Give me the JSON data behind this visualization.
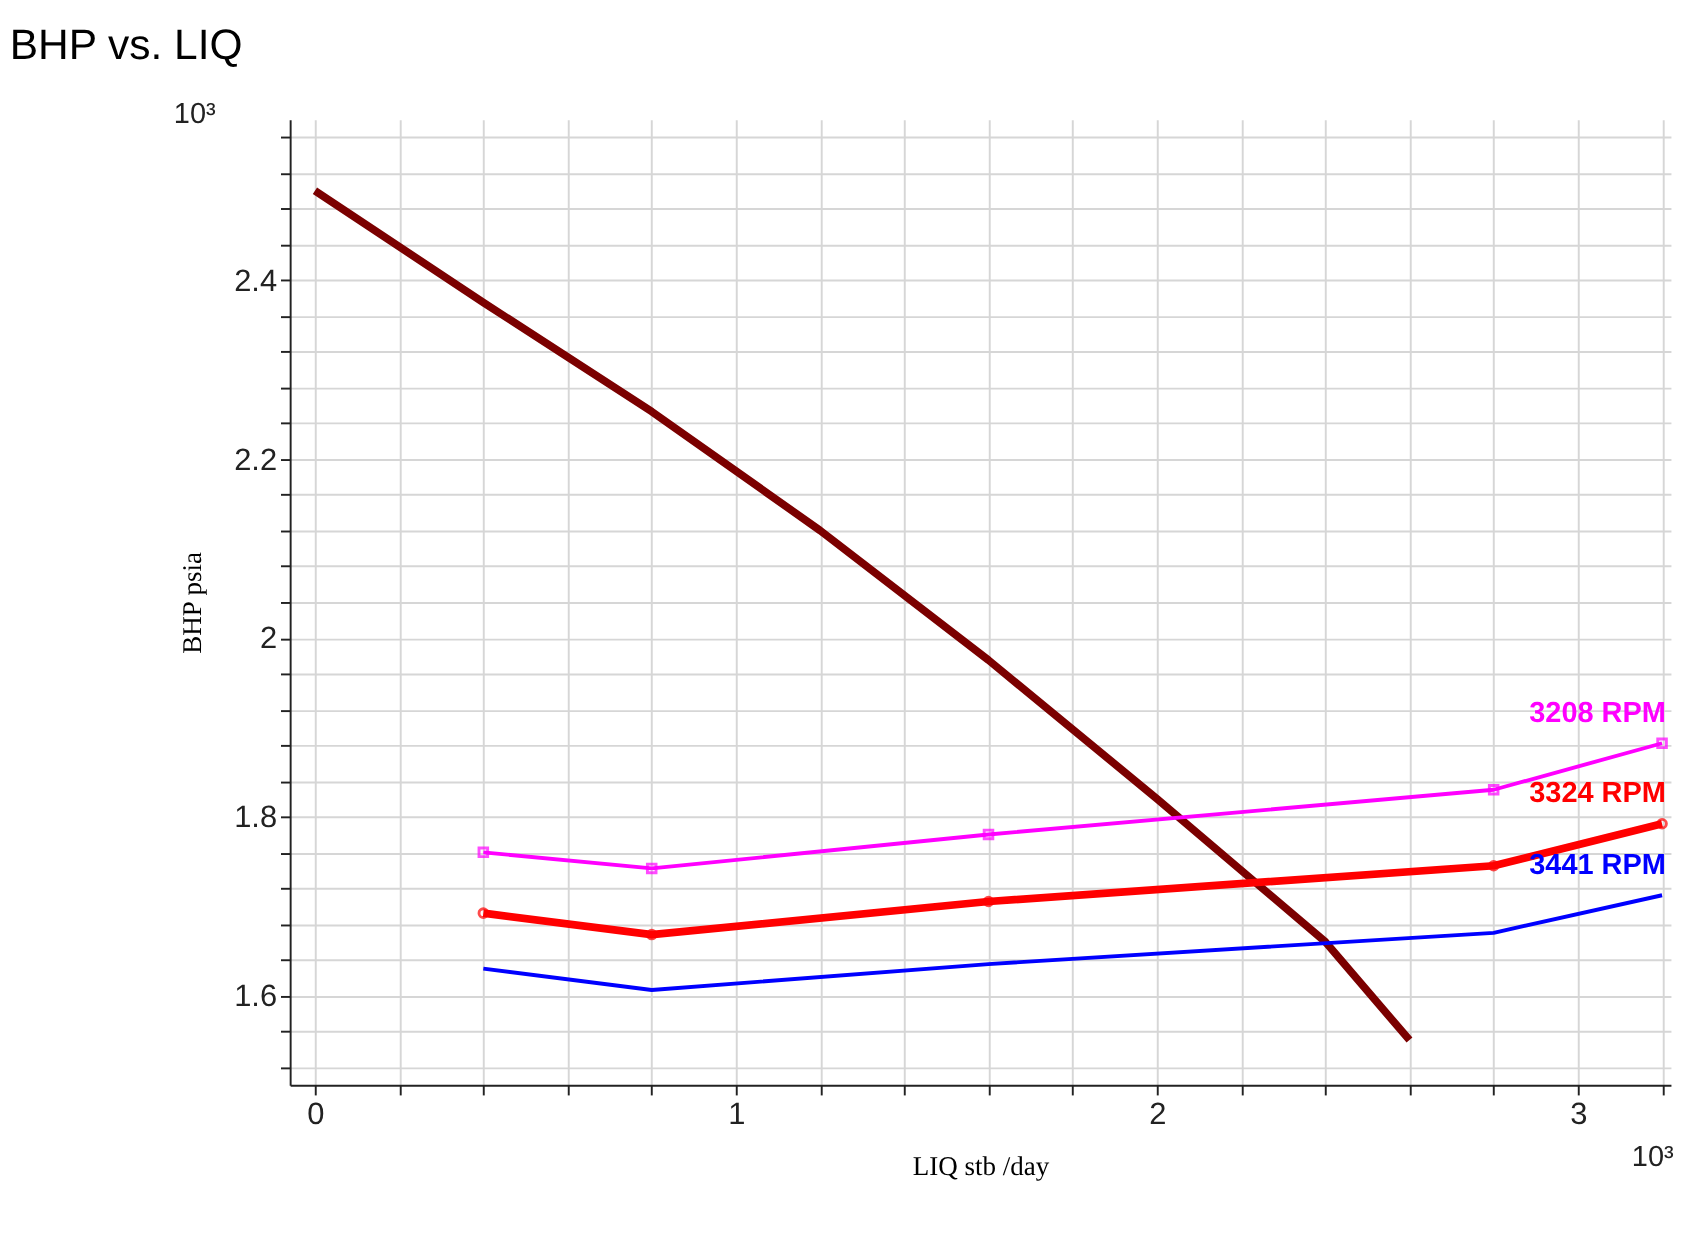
{
  "chart_data": {
    "type": "line",
    "title": "BHP vs. LIQ",
    "xlabel": "LIQ  stb /day",
    "ylabel": "BHP  psia",
    "annotations": [
      "10³",
      "10³"
    ],
    "xlim": [
      -0.06,
      3.22
    ],
    "ylim": [
      1.5,
      2.58
    ],
    "xticks": [
      0,
      {
        "value": 0.2,
        "label": null
      },
      {
        "value": 0.4,
        "label": null
      },
      {
        "value": 0.6,
        "label": null
      },
      {
        "value": 0.8,
        "label": null
      },
      1,
      {
        "value": 1.2,
        "label": null
      },
      {
        "value": 1.4,
        "label": null
      },
      {
        "value": 1.6,
        "label": null
      },
      {
        "value": 1.8,
        "label": null
      },
      2,
      {
        "value": 2.2,
        "label": null
      },
      {
        "value": 2.4,
        "label": null
      },
      {
        "value": 2.6,
        "label": null
      },
      {
        "value": 2.8,
        "label": null
      },
      3,
      {
        "value": 3.2,
        "label": null
      }
    ],
    "yticks": [
      {
        "value": 1.52,
        "label": null
      },
      {
        "value": 1.56,
        "label": null
      },
      1.6,
      {
        "value": 1.64,
        "label": null
      },
      {
        "value": 1.68,
        "label": null
      },
      {
        "value": 1.72,
        "label": null
      },
      {
        "value": 1.76,
        "label": null
      },
      1.8,
      {
        "value": 1.84,
        "label": null
      },
      {
        "value": 1.88,
        "label": null
      },
      {
        "value": 1.92,
        "label": null
      },
      {
        "value": 1.96,
        "label": null
      },
      2,
      {
        "value": 2.04,
        "label": null
      },
      {
        "value": 2.08,
        "label": null
      },
      {
        "value": 2.12,
        "label": null
      },
      {
        "value": 2.16,
        "label": null
      },
      2.2,
      {
        "value": 2.24,
        "label": null
      },
      {
        "value": 2.28,
        "label": null
      },
      {
        "value": 2.32,
        "label": null
      },
      {
        "value": 2.36,
        "label": null
      },
      2.4,
      {
        "value": 2.44,
        "label": null
      },
      {
        "value": 2.48,
        "label": null
      },
      {
        "value": 2.52,
        "label": null
      },
      {
        "value": 2.56,
        "label": null
      }
    ],
    "grid": true,
    "line_style": "solid",
    "series": [
      {
        "color": "#7b0000",
        "x": [
          0,
          0.4,
          0.8,
          1.2,
          1.6,
          2.0,
          2.4,
          2.6
        ],
        "values": [
          2.5,
          2.375,
          2.253,
          2.12,
          1.975,
          1.82,
          1.66,
          1.55
        ],
        "marker": "none"
      },
      {
        "name": "3208 RPM",
        "color": "#ff00ff",
        "x": [
          0.4,
          0.8,
          1.6,
          2.8,
          3.2
        ],
        "values": [
          1.76,
          1.742,
          1.78,
          1.83,
          1.882
        ],
        "marker": "square"
      },
      {
        "name": "3324 RPM",
        "color": "#ff0000",
        "x": [
          0.4,
          0.8,
          1.6,
          2.8,
          3.2
        ],
        "values": [
          1.692,
          1.668,
          1.705,
          1.745,
          1.792
        ],
        "marker": "circle"
      },
      {
        "name": "3441 RPM",
        "color": "#0000ff",
        "x": [
          0.4,
          0.8,
          1.6,
          2.8,
          3.2
        ],
        "values": [
          1.63,
          1.606,
          1.635,
          1.67,
          1.712
        ],
        "marker": "none"
      }
    ]
  }
}
